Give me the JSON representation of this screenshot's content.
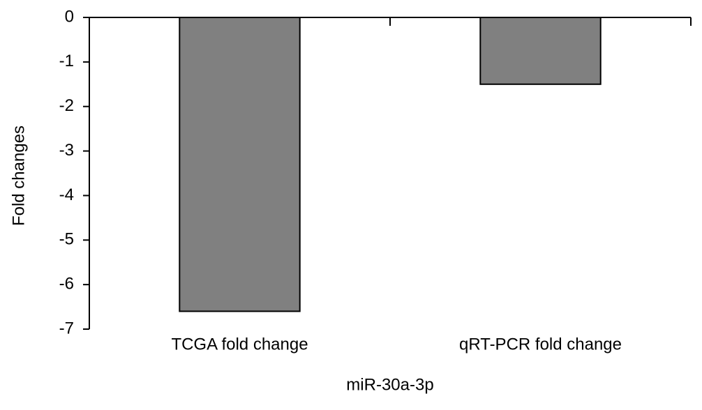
{
  "chart_data": {
    "type": "bar",
    "categories": [
      "TCGA fold change",
      "qRT-PCR fold change"
    ],
    "values": [
      -6.6,
      -1.5
    ],
    "color": "#808080",
    "ylim": [
      -7,
      0
    ],
    "yticks": [
      0,
      -1,
      -2,
      -3,
      -4,
      -5,
      -6,
      -7
    ],
    "ylabel": "Fold changes",
    "xlabel": "miR-30a-3p"
  }
}
